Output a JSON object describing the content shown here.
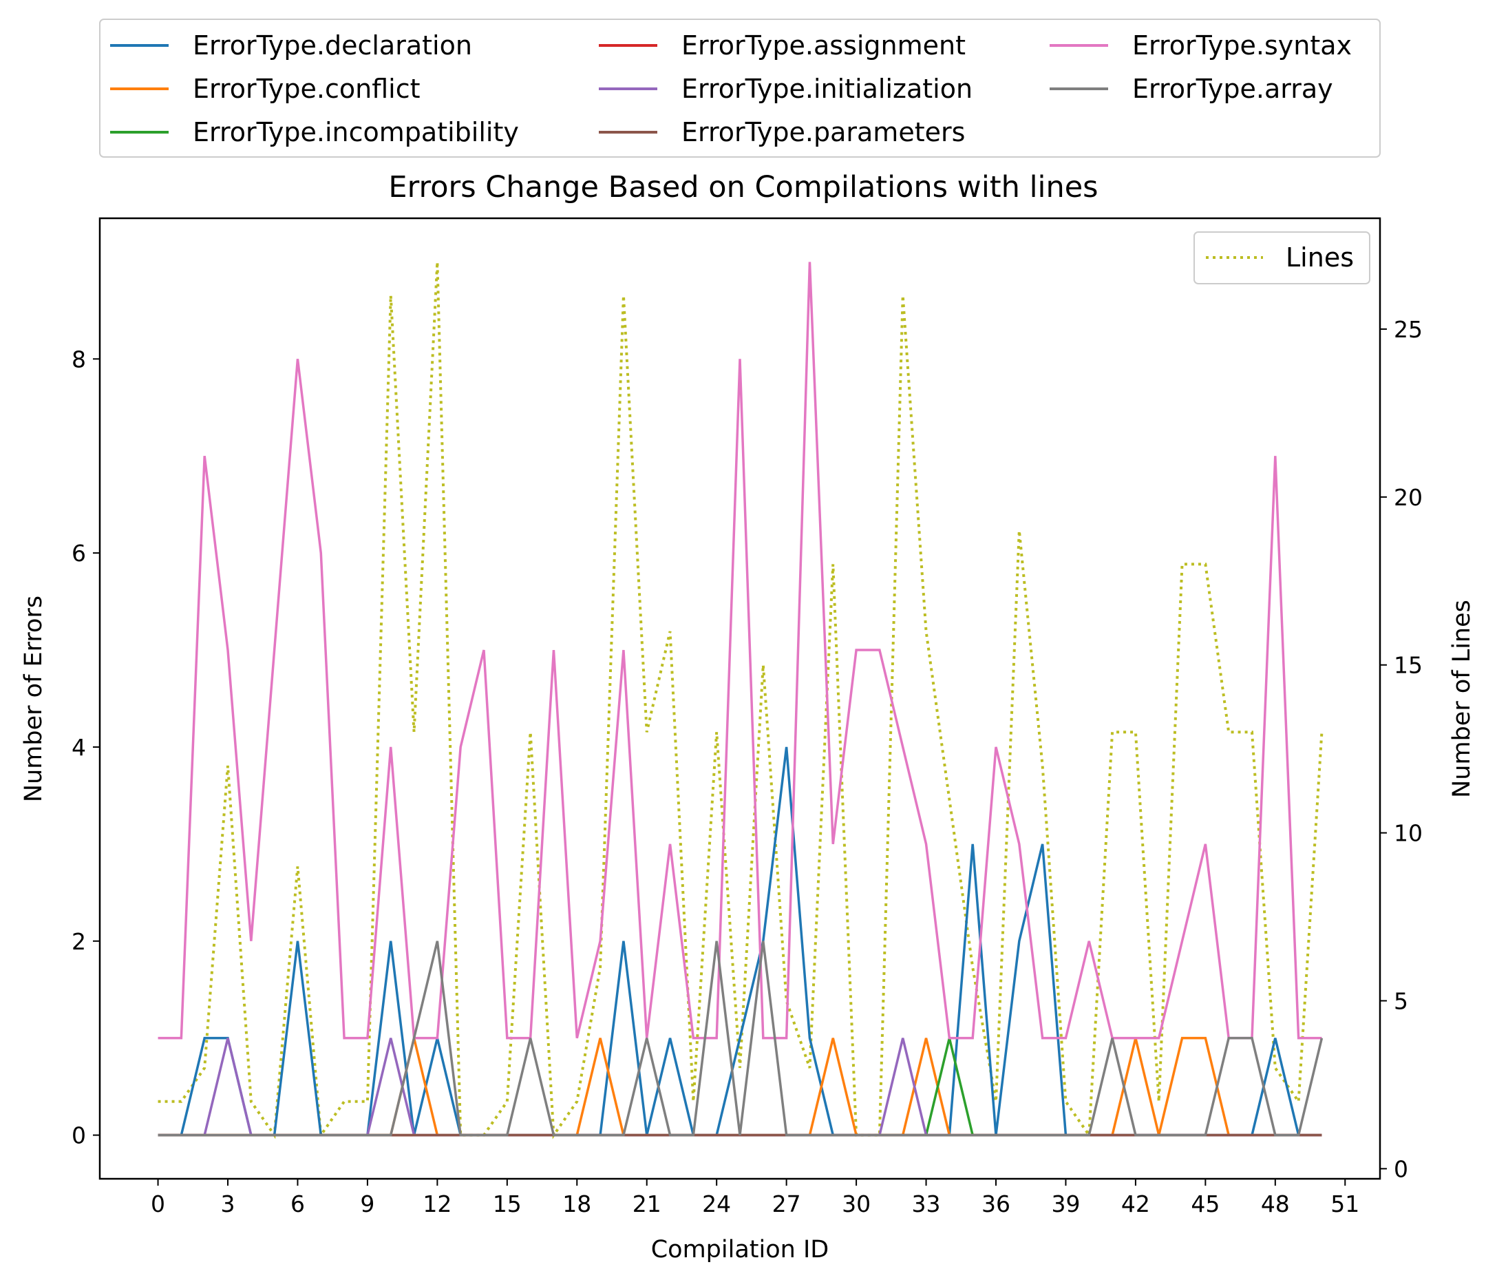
{
  "chart_data": {
    "type": "line",
    "title": "Errors Change Based on Compilations with lines",
    "xlabel": "Compilation ID",
    "ylabel": "Number of Errors",
    "y2label": "Number of Lines",
    "xlim": [
      -2.5,
      52.5
    ],
    "ylim": [
      -0.45,
      9.45
    ],
    "y2lim": [
      -0.3,
      28.3
    ],
    "xticks": [
      0,
      3,
      6,
      9,
      12,
      15,
      18,
      21,
      24,
      27,
      30,
      33,
      36,
      39,
      42,
      45,
      48,
      51
    ],
    "yticks": [
      0,
      2,
      4,
      6,
      8
    ],
    "y2ticks": [
      0,
      5,
      10,
      15,
      20,
      25
    ],
    "grid": false,
    "legend_placement": "top, above plot, 3 columns",
    "legend2_placement": "top-right",
    "x": [
      0,
      1,
      2,
      3,
      4,
      5,
      6,
      7,
      8,
      9,
      10,
      11,
      12,
      13,
      14,
      15,
      16,
      17,
      18,
      19,
      20,
      21,
      22,
      23,
      24,
      25,
      26,
      27,
      28,
      29,
      30,
      31,
      32,
      33,
      34,
      35,
      36,
      37,
      38,
      39,
      40,
      41,
      42,
      43,
      44,
      45,
      46,
      47,
      48,
      49,
      50
    ],
    "series": [
      {
        "name": "ErrorType.declaration",
        "color": "#1f77b4",
        "style": "solid",
        "axis": "left",
        "values": [
          0,
          0,
          1,
          1,
          0,
          0,
          2,
          0,
          0,
          0,
          2,
          0,
          1,
          0,
          0,
          0,
          0,
          0,
          0,
          0,
          2,
          0,
          1,
          0,
          0,
          1,
          2,
          4,
          1,
          0,
          0,
          0,
          0,
          0,
          0,
          3,
          0,
          2,
          3,
          0,
          0,
          0,
          0,
          0,
          0,
          0,
          0,
          0,
          1,
          0,
          0
        ]
      },
      {
        "name": "ErrorType.conflict",
        "color": "#ff7f0e",
        "style": "solid",
        "axis": "left",
        "values": [
          0,
          0,
          0,
          0,
          0,
          0,
          0,
          0,
          0,
          0,
          0,
          1,
          0,
          0,
          0,
          0,
          0,
          0,
          0,
          1,
          0,
          0,
          0,
          0,
          0,
          0,
          0,
          0,
          0,
          1,
          0,
          0,
          0,
          1,
          0,
          0,
          0,
          0,
          0,
          0,
          0,
          0,
          1,
          0,
          1,
          1,
          0,
          0,
          0,
          0,
          0
        ]
      },
      {
        "name": "ErrorType.incompatibility",
        "color": "#2ca02c",
        "style": "solid",
        "axis": "left",
        "values": [
          0,
          0,
          0,
          0,
          0,
          0,
          0,
          0,
          0,
          0,
          0,
          0,
          0,
          0,
          0,
          0,
          0,
          0,
          0,
          0,
          0,
          0,
          0,
          0,
          0,
          0,
          0,
          0,
          0,
          0,
          0,
          0,
          0,
          0,
          1,
          0,
          0,
          0,
          0,
          0,
          0,
          0,
          0,
          0,
          0,
          0,
          0,
          0,
          0,
          0,
          0
        ]
      },
      {
        "name": "ErrorType.assignment",
        "color": "#d62728",
        "style": "solid",
        "axis": "left",
        "values": [
          0,
          0,
          0,
          0,
          0,
          0,
          0,
          0,
          0,
          0,
          0,
          0,
          0,
          0,
          0,
          0,
          0,
          0,
          0,
          0,
          0,
          0,
          0,
          0,
          0,
          0,
          0,
          0,
          0,
          0,
          0,
          0,
          0,
          0,
          0,
          0,
          0,
          0,
          0,
          0,
          0,
          0,
          0,
          0,
          0,
          0,
          0,
          0,
          0,
          0,
          0
        ]
      },
      {
        "name": "ErrorType.initialization",
        "color": "#9467bd",
        "style": "solid",
        "axis": "left",
        "values": [
          0,
          0,
          0,
          1,
          0,
          0,
          0,
          0,
          0,
          0,
          1,
          0,
          0,
          0,
          0,
          0,
          0,
          0,
          0,
          0,
          0,
          0,
          0,
          0,
          0,
          0,
          0,
          0,
          0,
          0,
          0,
          0,
          1,
          0,
          0,
          0,
          0,
          0,
          0,
          0,
          0,
          0,
          0,
          0,
          0,
          0,
          0,
          0,
          0,
          0,
          0
        ]
      },
      {
        "name": "ErrorType.parameters",
        "color": "#8c564b",
        "style": "solid",
        "axis": "left",
        "values": [
          0,
          0,
          0,
          0,
          0,
          0,
          0,
          0,
          0,
          0,
          0,
          0,
          0,
          0,
          0,
          0,
          0,
          0,
          0,
          0,
          0,
          0,
          0,
          0,
          0,
          0,
          0,
          0,
          0,
          0,
          0,
          0,
          0,
          0,
          0,
          0,
          0,
          0,
          0,
          0,
          0,
          0,
          0,
          0,
          0,
          0,
          0,
          0,
          0,
          0,
          0
        ]
      },
      {
        "name": "ErrorType.syntax",
        "color": "#e377c2",
        "style": "solid",
        "axis": "left",
        "values": [
          1,
          1,
          7,
          5,
          2,
          5,
          8,
          6,
          1,
          1,
          4,
          1,
          1,
          4,
          5,
          1,
          1,
          5,
          1,
          2,
          5,
          1,
          3,
          1,
          1,
          8,
          1,
          1,
          9,
          3,
          5,
          5,
          4,
          3,
          1,
          1,
          4,
          3,
          1,
          1,
          2,
          1,
          1,
          1,
          2,
          3,
          1,
          1,
          7,
          1,
          1
        ]
      },
      {
        "name": "ErrorType.array",
        "color": "#7f7f7f",
        "style": "solid",
        "axis": "left",
        "values": [
          0,
          0,
          0,
          0,
          0,
          0,
          0,
          0,
          0,
          0,
          0,
          1,
          2,
          0,
          0,
          0,
          1,
          0,
          0,
          0,
          0,
          1,
          0,
          0,
          2,
          0,
          2,
          0,
          0,
          0,
          0,
          0,
          0,
          0,
          0,
          0,
          0,
          0,
          0,
          0,
          0,
          1,
          0,
          0,
          0,
          0,
          1,
          1,
          0,
          0,
          1
        ]
      },
      {
        "name": "Lines",
        "color": "#bcbd22",
        "style": "dotted",
        "axis": "right",
        "values": [
          2,
          2,
          3,
          12,
          2,
          1,
          9,
          1,
          2,
          2,
          26,
          13,
          27,
          1,
          1,
          2,
          13,
          1,
          2,
          6,
          26,
          13,
          16,
          2,
          13,
          3,
          15,
          5,
          3,
          18,
          1,
          1,
          26,
          16,
          11,
          6,
          2,
          19,
          12,
          2,
          1,
          13,
          13,
          2,
          18,
          18,
          13,
          13,
          3,
          2,
          13
        ]
      }
    ]
  }
}
